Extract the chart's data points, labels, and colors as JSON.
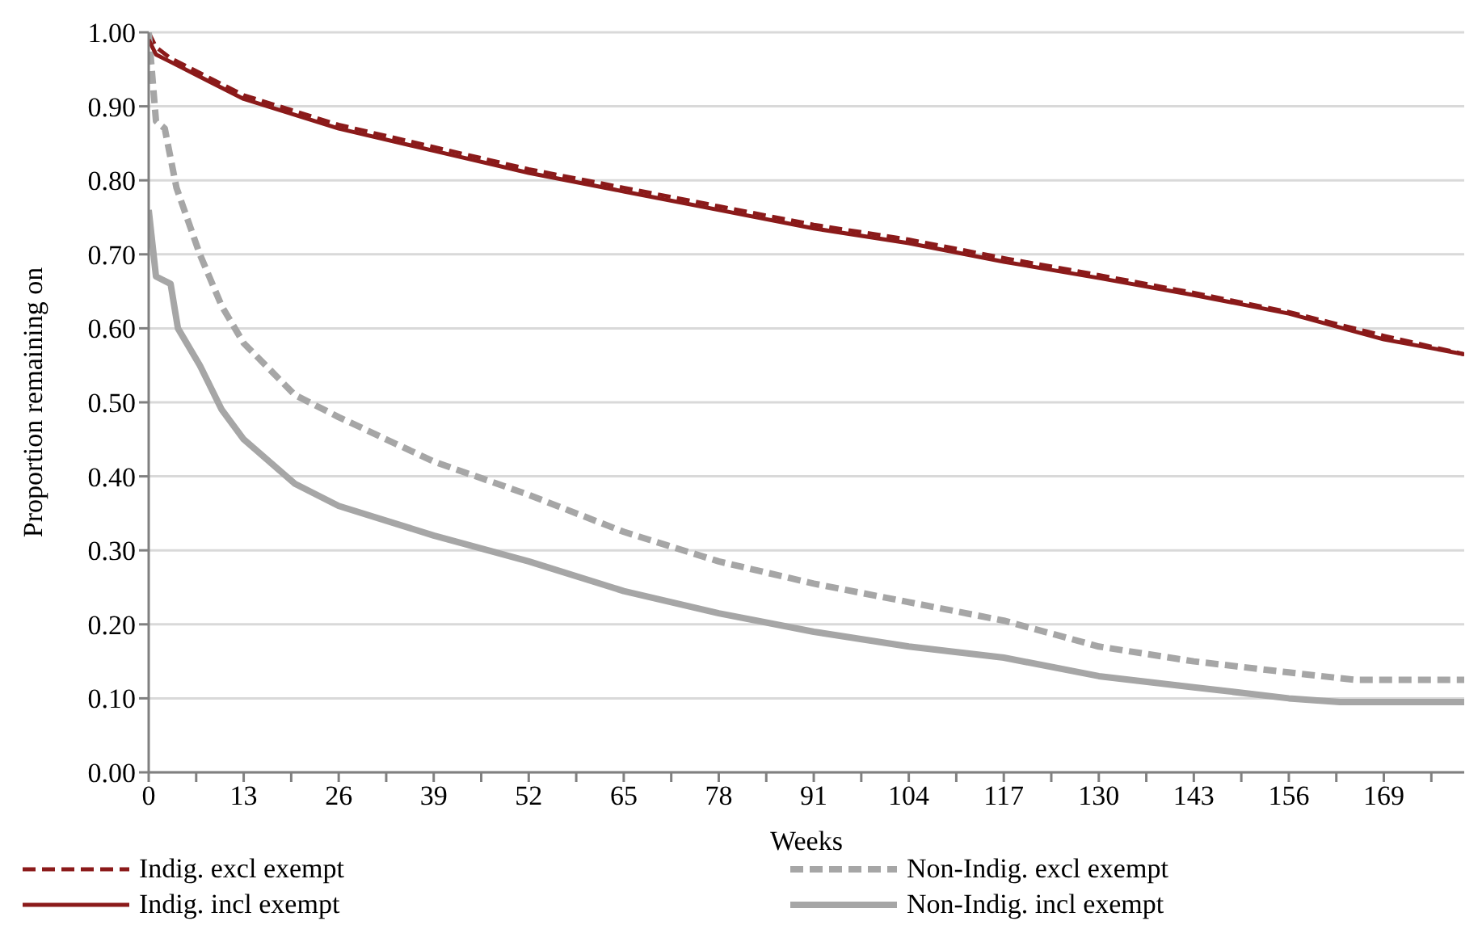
{
  "chart_data": {
    "type": "line",
    "xlabel": "Weeks",
    "ylabel": "Proportion remaining on",
    "xlim": [
      0,
      180
    ],
    "xticks": [
      0,
      {
        "value": 6.5,
        "label": null
      },
      13,
      {
        "value": 19.5,
        "label": null
      },
      26,
      {
        "value": 32.5,
        "label": null
      },
      39,
      {
        "value": 45.5,
        "label": null
      },
      52,
      {
        "value": 58.5,
        "label": null
      },
      65,
      {
        "value": 71.5,
        "label": null
      },
      78,
      {
        "value": 84.5,
        "label": null
      },
      91,
      {
        "value": 97.5,
        "label": null
      },
      104,
      {
        "value": 110.5,
        "label": null
      },
      117,
      {
        "value": 123.5,
        "label": null
      },
      130,
      {
        "value": 136.5,
        "label": null
      },
      143,
      {
        "value": 149.5,
        "label": null
      },
      156,
      {
        "value": 162.5,
        "label": null
      },
      169,
      {
        "value": 175.5,
        "label": null
      }
    ],
    "ylim": [
      0,
      1
    ],
    "yticks": [
      {
        "value": 0,
        "label": "0.00"
      },
      {
        "value": 0.1,
        "label": "0.10"
      },
      {
        "value": 0.2,
        "label": "0.20"
      },
      {
        "value": 0.3,
        "label": "0.30"
      },
      {
        "value": 0.4,
        "label": "0.40"
      },
      {
        "value": 0.5,
        "label": "0.50"
      },
      {
        "value": 0.6,
        "label": "0.60"
      },
      {
        "value": 0.7,
        "label": "0.70"
      },
      {
        "value": 0.8,
        "label": "0.80"
      },
      {
        "value": 0.9,
        "label": "0.90"
      },
      {
        "value": 1,
        "label": "1.00"
      }
    ],
    "grid": "y",
    "legend": "bottom",
    "marker": "none",
    "series": [
      {
        "name": "Indig. excl exempt",
        "color": "#8b1a1a",
        "line_style": "dashed",
        "x": [
          0,
          1,
          3,
          13,
          26,
          39,
          52,
          65,
          78,
          91,
          104,
          117,
          130,
          143,
          156,
          169,
          180
        ],
        "values": [
          1.0,
          0.98,
          0.965,
          0.915,
          0.875,
          0.845,
          0.815,
          0.79,
          0.765,
          0.74,
          0.72,
          0.695,
          0.672,
          0.648,
          0.622,
          0.59,
          0.565
        ]
      },
      {
        "name": "Non-Indig. excl exempt",
        "color": "#a6a6a6",
        "line_style": "dashed",
        "x": [
          0,
          1,
          2.2,
          3.8,
          7,
          10,
          13,
          20,
          26,
          39,
          52,
          65,
          78,
          91,
          104,
          117,
          130,
          143,
          156,
          165,
          180
        ],
        "values": [
          1.0,
          0.88,
          0.87,
          0.79,
          0.7,
          0.63,
          0.58,
          0.51,
          0.48,
          0.42,
          0.375,
          0.325,
          0.285,
          0.255,
          0.23,
          0.205,
          0.17,
          0.15,
          0.135,
          0.125,
          0.125
        ]
      },
      {
        "name": "Indig. incl exempt",
        "color": "#8b1a1a",
        "line_style": "solid",
        "x": [
          0,
          1,
          3,
          13,
          26,
          39,
          52,
          65,
          78,
          91,
          104,
          117,
          130,
          143,
          156,
          169,
          180
        ],
        "values": [
          0.99,
          0.97,
          0.96,
          0.91,
          0.87,
          0.84,
          0.81,
          0.785,
          0.76,
          0.735,
          0.715,
          0.69,
          0.668,
          0.645,
          0.62,
          0.585,
          0.565
        ]
      },
      {
        "name": "Non-Indig. incl exempt",
        "color": "#a6a6a6",
        "line_style": "solid",
        "x": [
          0,
          1,
          3,
          4,
          7,
          10,
          13,
          20,
          26,
          39,
          52,
          65,
          78,
          91,
          104,
          117,
          130,
          143,
          156,
          163,
          180
        ],
        "values": [
          0.76,
          0.67,
          0.66,
          0.6,
          0.55,
          0.49,
          0.45,
          0.39,
          0.36,
          0.32,
          0.285,
          0.245,
          0.215,
          0.19,
          0.17,
          0.155,
          0.13,
          0.115,
          0.1,
          0.095,
          0.095
        ]
      }
    ]
  }
}
